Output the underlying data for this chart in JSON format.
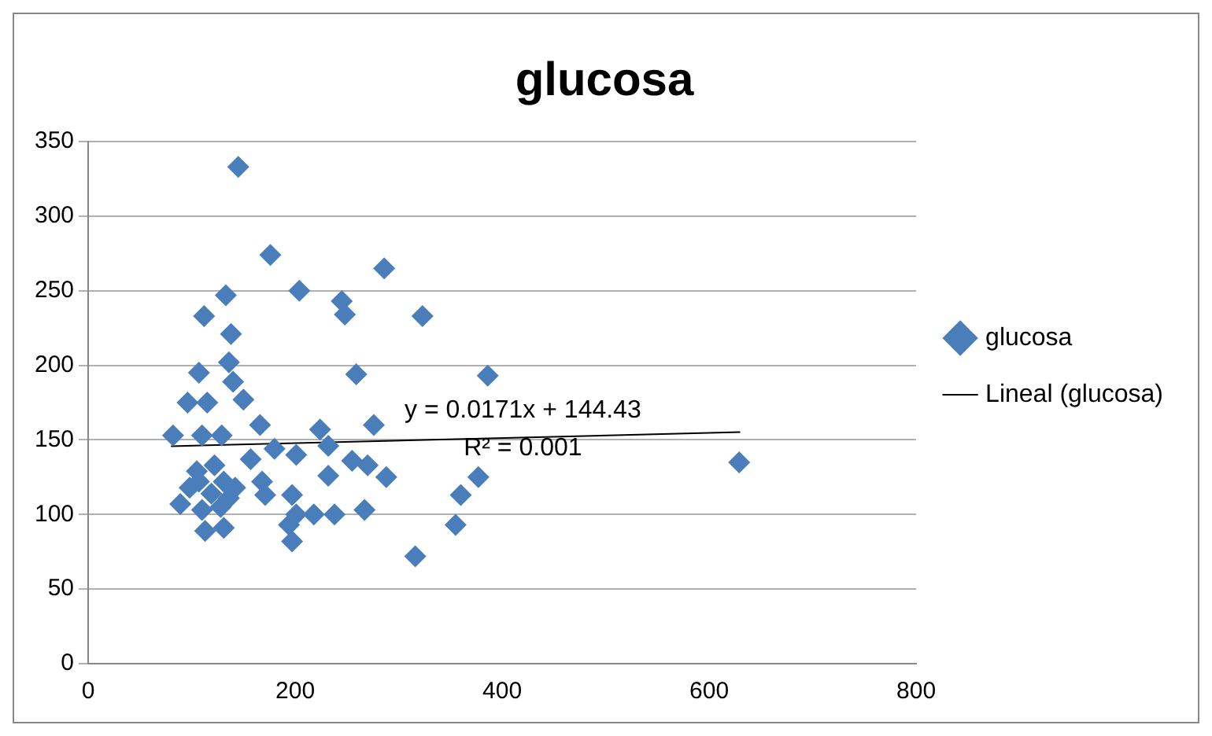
{
  "chart_data": {
    "type": "scatter",
    "title": "glucosa",
    "xlim": [
      0,
      800
    ],
    "xticks": [
      0,
      200,
      400,
      600,
      800
    ],
    "ylim": [
      0,
      350
    ],
    "yticks": [
      0,
      50,
      100,
      150,
      200,
      250,
      300,
      350
    ],
    "grid": "y",
    "legend": "right",
    "marker": "diamond",
    "annotations": [
      "y = 0.0171x + 144.43",
      "R² = 0.001"
    ],
    "series": [
      {
        "name": "glucosa",
        "color": "#4a7ebb",
        "x": [
          145,
          176,
          133,
          204,
          245,
          248,
          286,
          112,
          323,
          138,
          136,
          107,
          140,
          259,
          386,
          150,
          96,
          115,
          166,
          82,
          110,
          129,
          276,
          224,
          232,
          157,
          180,
          201,
          255,
          270,
          288,
          232,
          377,
          360,
          355,
          316,
          168,
          171,
          197,
          201,
          218,
          238,
          267,
          194,
          197,
          105,
          122,
          131,
          98,
          119,
          136,
          89,
          110,
          128,
          113,
          131,
          107,
          142,
          629
        ],
        "values": [
          333,
          274,
          247,
          250,
          243,
          234,
          265,
          233,
          233,
          221,
          202,
          195,
          189,
          194,
          193,
          177,
          175,
          175,
          160,
          153,
          153,
          153,
          160,
          157,
          146,
          137,
          144,
          140,
          136,
          133,
          125,
          126,
          125,
          113,
          93,
          72,
          122,
          113,
          113,
          100,
          100,
          100,
          103,
          93,
          82,
          129,
          133,
          122,
          118,
          114,
          111,
          107,
          103,
          105,
          89,
          91,
          122,
          118,
          135
        ]
      },
      {
        "name": "Lineal (glucosa)",
        "type": "line",
        "color": "#000000",
        "marker": "none",
        "x": [
          80,
          630
        ],
        "values": [
          145.8,
          155.2
        ]
      }
    ]
  }
}
